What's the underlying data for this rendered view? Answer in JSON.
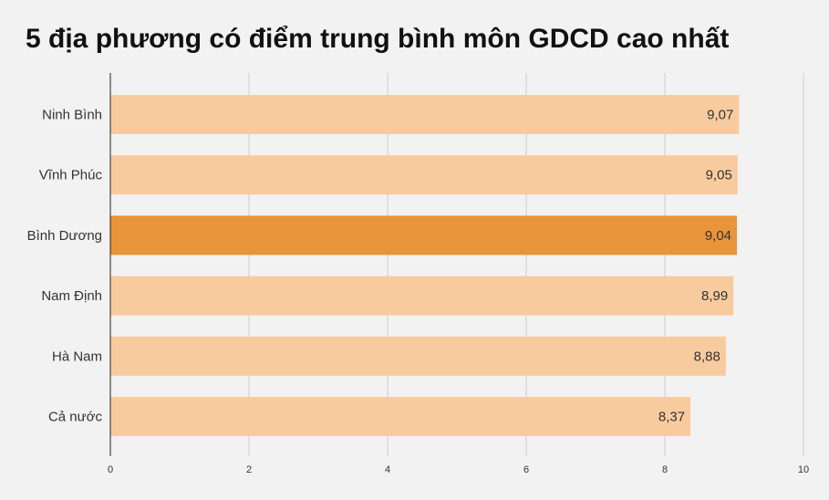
{
  "colors": {
    "bar": "#f8cb9e",
    "highlight": "#e8943a",
    "grid": "#cccccc",
    "axis": "#222222",
    "background": "#f3f2f2"
  },
  "chart_data": {
    "type": "bar",
    "orientation": "horizontal",
    "title": "5 địa phương có điểm trung bình môn GDCD cao nhất",
    "xlabel": "",
    "ylabel": "",
    "categories": [
      "Ninh Bình",
      "Vĩnh Phúc",
      "Bình Dương",
      "Nam Định",
      "Hà Nam",
      "Cả nước"
    ],
    "values": [
      9.07,
      9.05,
      9.04,
      8.99,
      8.88,
      8.37
    ],
    "value_labels": [
      "9,07",
      "9,05",
      "9,04",
      "8,99",
      "8,88",
      "8,37"
    ],
    "highlight_category": "Bình Dương",
    "xlim": [
      0,
      10
    ],
    "xticks": [
      0,
      2,
      4,
      6,
      8,
      10
    ],
    "xtick_labels": [
      "0",
      "2",
      "4",
      "6",
      "8",
      "10"
    ],
    "grid": true,
    "legend": "none"
  }
}
